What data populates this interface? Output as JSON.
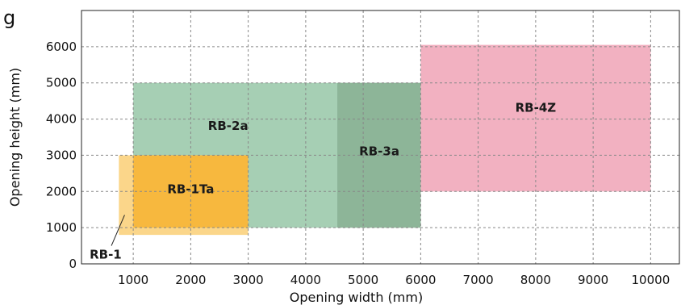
{
  "panel_letter": "g",
  "chart_data": {
    "type": "range-rectangles",
    "xlabel": "Opening width (mm)",
    "ylabel": "Opening height (mm)",
    "xlim": [
      100,
      10500
    ],
    "ylim": [
      0,
      7000
    ],
    "grid": true,
    "x_ticks": [
      1000,
      2000,
      3000,
      4000,
      5000,
      6000,
      7000,
      8000,
      9000,
      10000
    ],
    "y_ticks": [
      0,
      1000,
      2000,
      3000,
      4000,
      5000,
      6000
    ],
    "regions": [
      {
        "name": "RB-2a",
        "x_min": 1000,
        "x_max": 6000,
        "y_min": 1000,
        "y_max": 5000,
        "color": "#a6cfb4"
      },
      {
        "name": "RB-3a",
        "x_min": 4550,
        "x_max": 6000,
        "y_min": 1000,
        "y_max": 5000,
        "color": "#8db598"
      },
      {
        "name": "RB-4Z",
        "x_min": 6000,
        "x_max": 10000,
        "y_min": 2000,
        "y_max": 6050,
        "color": "#f2b1c1"
      },
      {
        "name": "RB-1",
        "x_min": 750,
        "x_max": 3000,
        "y_min": 800,
        "y_max": 3000,
        "color": "#fbd68a"
      },
      {
        "name": "RB-1Ta",
        "x_min": 1000,
        "x_max": 3000,
        "y_min": 1000,
        "y_max": 3000,
        "color": "#f7b83e"
      }
    ]
  }
}
